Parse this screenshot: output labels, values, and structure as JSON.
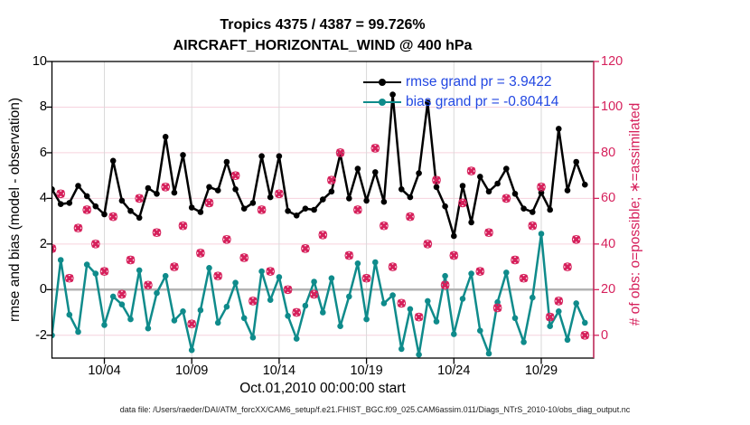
{
  "header": {
    "title_line1": "Tropics 4375 / 4387 = 99.726%",
    "title_line2": "AIRCRAFT_HORIZONTAL_WIND @ 400 hPa"
  },
  "footer": {
    "data_file": "data file: /Users/raeder/DAI/ATM_forcXX/CAM6_setup/f.e21.FHIST_BGC.f09_025.CAM6assim.011/Diags_NTrS_2010-10/obs_diag_output.nc"
  },
  "chart_data": {
    "type": "line",
    "title": "Tropics 4375 / 4387 = 99.726%",
    "subtitle": "AIRCRAFT_HORIZONTAL_WIND @ 400 hPa",
    "xlabel": "Oct.01,2010 00:00:00 start",
    "ylabel_left": "rmse and bias (model - observation)",
    "ylabel_right": "# of obs: o=possible; ∗=assimilated",
    "xlim_days": [
      0,
      31
    ],
    "ylim_left": [
      -3,
      10
    ],
    "ylim_right": [
      -10,
      120
    ],
    "grid": "on",
    "time_step_days": 0.5,
    "xticks": [
      {
        "t": 3,
        "label": "10/04"
      },
      {
        "t": 8,
        "label": "10/09"
      },
      {
        "t": 13,
        "label": "10/14"
      },
      {
        "t": 18,
        "label": "10/19"
      },
      {
        "t": 23,
        "label": "10/24"
      },
      {
        "t": 28,
        "label": "10/29"
      }
    ],
    "yticks_left": [
      10,
      8,
      6,
      4,
      2,
      0,
      -2
    ],
    "yticks_right": [
      120,
      100,
      80,
      60,
      40,
      20,
      0
    ],
    "legend": {
      "position": "top-right-inside",
      "text_color": "#2247e2"
    },
    "series": [
      {
        "name": "rmse grand pr = 3.9422",
        "axis": "left",
        "color": "#000000",
        "marker": "circle",
        "values": [
          4.4,
          3.75,
          3.8,
          4.55,
          4.1,
          3.65,
          3.3,
          5.65,
          3.9,
          3.45,
          3.15,
          4.45,
          4.2,
          6.7,
          4.25,
          5.9,
          3.6,
          3.4,
          4.5,
          4.35,
          5.6,
          4.4,
          3.55,
          3.8,
          5.85,
          4.05,
          5.85,
          3.45,
          3.25,
          3.55,
          3.5,
          3.95,
          4.3,
          5.95,
          4.0,
          5.3,
          3.9,
          5.15,
          3.85,
          8.55,
          4.4,
          4.05,
          5.1,
          8.2,
          4.5,
          3.65,
          2.35,
          4.55,
          2.95,
          4.95,
          4.3,
          4.65,
          5.3,
          4.2,
          3.55,
          3.4,
          4.25,
          3.5,
          7.05,
          4.35,
          5.6,
          4.6
        ]
      },
      {
        "name": "bias grand pr = -0.80414",
        "axis": "left",
        "color": "#0f8b8b",
        "marker": "circle",
        "values": [
          -2.0,
          1.3,
          -1.1,
          -1.85,
          1.1,
          0.7,
          -1.55,
          -0.3,
          -0.65,
          -1.3,
          0.85,
          -1.7,
          -0.15,
          0.6,
          -1.35,
          -0.95,
          -2.65,
          -0.9,
          0.95,
          -1.45,
          -0.75,
          0.3,
          -1.25,
          -2.1,
          0.8,
          -0.45,
          0.55,
          -1.15,
          -2.15,
          -0.7,
          0.35,
          -1.0,
          0.5,
          -1.6,
          -0.3,
          1.15,
          -1.3,
          1.2,
          -0.6,
          -0.25,
          -2.6,
          -0.85,
          -2.85,
          -0.5,
          -1.4,
          0.6,
          -1.95,
          -0.4,
          0.7,
          -1.8,
          -2.8,
          -0.55,
          0.75,
          -1.25,
          -2.3,
          -0.35,
          2.45,
          -1.6,
          -0.95,
          -2.2,
          -0.6,
          -1.45
        ]
      },
      {
        "name": "obs count (o=possible, ∗=assimilated)",
        "axis": "right",
        "color": "#d6215c",
        "marker": "x-with-circle",
        "values": [
          38,
          62,
          25,
          47,
          55,
          40,
          28,
          52,
          18,
          33,
          60,
          22,
          45,
          65,
          30,
          48,
          5,
          36,
          58,
          26,
          42,
          70,
          34,
          15,
          55,
          28,
          62,
          20,
          10,
          38,
          18,
          44,
          68,
          80,
          35,
          55,
          25,
          82,
          48,
          30,
          14,
          52,
          8,
          40,
          68,
          22,
          35,
          58,
          72,
          28,
          45,
          12,
          60,
          33,
          25,
          48,
          65,
          8,
          15,
          30,
          42,
          0
        ]
      }
    ],
    "colors": {
      "obs_pink": "#d6215c",
      "grid_pink": "#f6d2de",
      "grid_gray": "#d9d9d9",
      "zero_line_gray": "#b3b3b3",
      "axis_black": "#000000",
      "legend_blue": "#2247e2"
    }
  }
}
